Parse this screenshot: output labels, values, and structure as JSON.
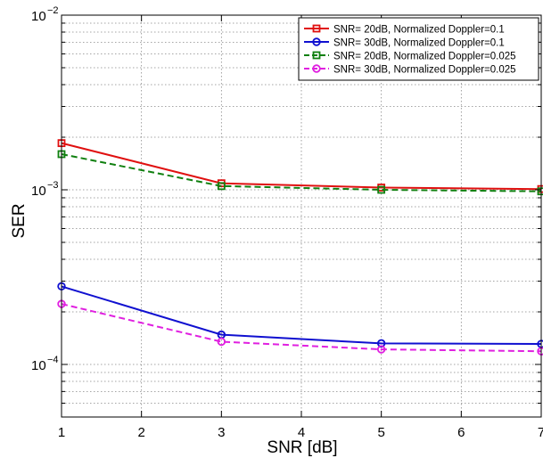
{
  "chart_data": {
    "type": "line",
    "title": "",
    "xlabel": "SNR [dB]",
    "ylabel": "SER",
    "x_scale": "linear",
    "y_scale": "log",
    "xlim": [
      1,
      7
    ],
    "ylim": [
      5e-05,
      0.01
    ],
    "x_ticks": [
      1,
      2,
      3,
      4,
      5,
      6,
      7
    ],
    "x_tick_labels": [
      "1",
      "2",
      "3",
      "4",
      "5",
      "6",
      "7"
    ],
    "y_major_ticks": [
      0.0001,
      0.001,
      0.01
    ],
    "y_tick_labels": [
      {
        "base": "10",
        "exp": "−4"
      },
      {
        "base": "10",
        "exp": "−3"
      },
      {
        "base": "10",
        "exp": "−2"
      }
    ],
    "grid": true,
    "grid_style": "dotted",
    "legend_position": "top-right",
    "x": [
      1,
      3,
      5,
      7
    ],
    "series": [
      {
        "name": "SNR= 20dB, Normalized Doppler=0.1",
        "color": "#e01010",
        "dash": "solid",
        "marker": "square",
        "values": [
          0.00185,
          0.00109,
          0.00103,
          0.00101
        ]
      },
      {
        "name": "SNR= 30dB, Normalized Doppler=0.1",
        "color": "#1010d0",
        "dash": "solid",
        "marker": "circle",
        "values": [
          0.00028,
          0.000148,
          0.000132,
          0.000131
        ]
      },
      {
        "name": "SNR= 20dB, Normalized Doppler=0.025",
        "color": "#108010",
        "dash": "dashed",
        "marker": "square",
        "values": [
          0.0016,
          0.00105,
          0.001,
          0.00098
        ]
      },
      {
        "name": "SNR= 30dB, Normalized Doppler=0.025",
        "color": "#e020e0",
        "dash": "dashed",
        "marker": "circle",
        "values": [
          0.000222,
          0.000135,
          0.000122,
          0.000119
        ]
      }
    ]
  }
}
